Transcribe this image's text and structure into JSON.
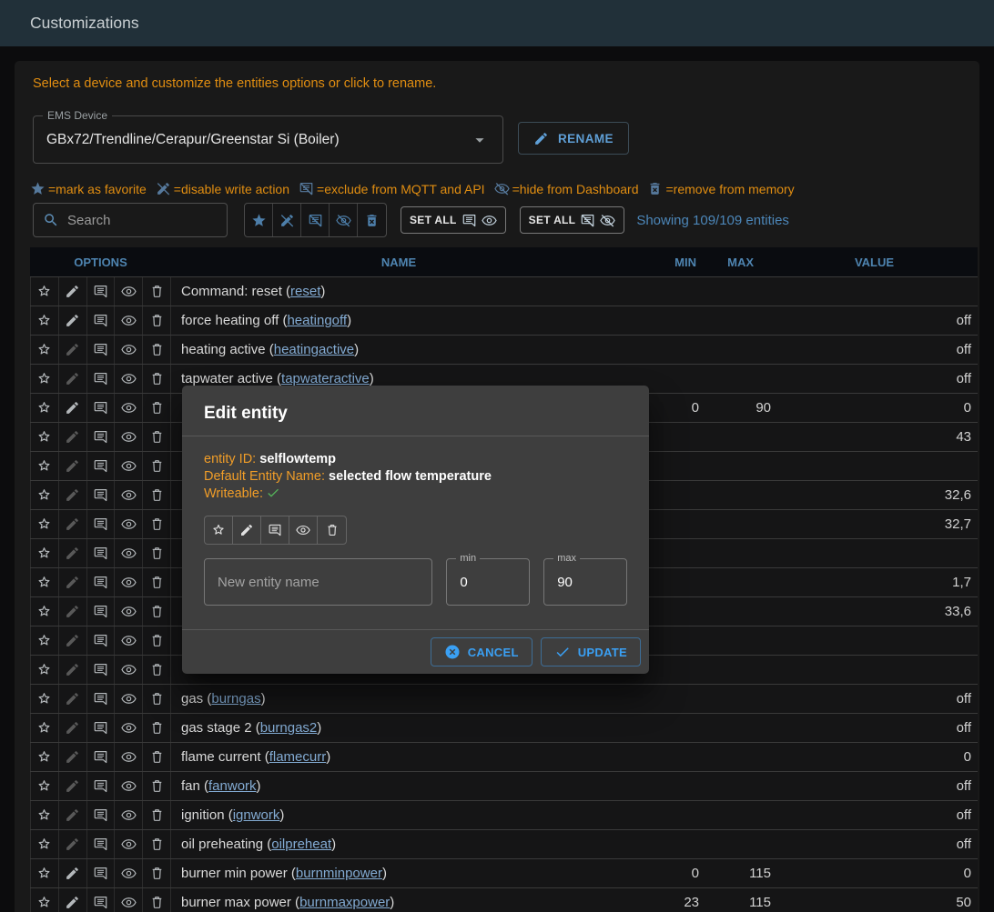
{
  "app_bar": {
    "title": "Customizations"
  },
  "intro": "Select a device and customize the entities options or click to rename.",
  "device_select": {
    "label": "EMS Device",
    "value": "GBx72/Trendline/Cerapur/Greenstar Si (Boiler)"
  },
  "rename_button": "RENAME",
  "legend": [
    {
      "icon": "star-filled",
      "text": "=mark as favorite"
    },
    {
      "icon": "pencil-off",
      "text": "=disable write action"
    },
    {
      "icon": "comment-off",
      "text": "=exclude from MQTT and API"
    },
    {
      "icon": "eye-off",
      "text": "=hide from Dashboard"
    },
    {
      "icon": "trash-x",
      "text": "=remove from memory"
    }
  ],
  "filter_bar": {
    "search_placeholder": "Search",
    "toggle_icons": [
      "star-filled",
      "pencil-off",
      "comment-off",
      "eye-off",
      "trash-x"
    ],
    "set_all_buttons": [
      {
        "label": "SET ALL",
        "icons": [
          "comment",
          "eye"
        ]
      },
      {
        "label": "SET ALL",
        "icons": [
          "comment-off",
          "eye-off"
        ]
      }
    ],
    "showing_text": "Showing 109/109 entities"
  },
  "table": {
    "headers": [
      "OPTIONS",
      "NAME",
      "MIN",
      "MAX",
      "VALUE"
    ],
    "rows": [
      {
        "name": "Command: reset",
        "id": "reset",
        "writeable": true,
        "min": "",
        "max": "",
        "value": ""
      },
      {
        "name": "force heating off",
        "id": "heatingoff",
        "writeable": true,
        "min": "",
        "max": "",
        "value": "off"
      },
      {
        "name": "heating active",
        "id": "heatingactive",
        "writeable": false,
        "min": "",
        "max": "",
        "value": "off"
      },
      {
        "name": "tapwater active",
        "id": "tapwateractive",
        "writeable": false,
        "min": "",
        "max": "",
        "value": "off"
      },
      {
        "name": "",
        "id": "",
        "writeable": true,
        "min": "0",
        "max": "90",
        "value": "0",
        "covered": true
      },
      {
        "name": "",
        "id": "",
        "writeable": false,
        "min": "",
        "max": "",
        "value": "43",
        "covered": true
      },
      {
        "name": "",
        "id": "",
        "writeable": false,
        "min": "",
        "max": "",
        "value": "",
        "covered": true
      },
      {
        "name": "",
        "id": "",
        "writeable": false,
        "min": "",
        "max": "",
        "value": "32,6",
        "covered": true
      },
      {
        "name": "",
        "id": "",
        "writeable": false,
        "min": "",
        "max": "",
        "value": "32,7",
        "covered": true
      },
      {
        "name": "",
        "id": "",
        "writeable": false,
        "min": "",
        "max": "",
        "value": "",
        "covered": true
      },
      {
        "name": "",
        "id": "",
        "writeable": false,
        "min": "",
        "max": "",
        "value": "1,7",
        "covered": true
      },
      {
        "name": "",
        "id": "",
        "writeable": false,
        "min": "",
        "max": "",
        "value": "33,6",
        "covered": true
      },
      {
        "name": "",
        "id": "",
        "writeable": false,
        "min": "",
        "max": "",
        "value": "",
        "covered": true
      },
      {
        "name": "",
        "id": "",
        "writeable": false,
        "min": "",
        "max": "",
        "value": "",
        "covered": true
      },
      {
        "name": "gas",
        "id": "burngas",
        "writeable": false,
        "min": "",
        "max": "",
        "value": "off"
      },
      {
        "name": "gas stage 2",
        "id": "burngas2",
        "writeable": false,
        "min": "",
        "max": "",
        "value": "off"
      },
      {
        "name": "flame current",
        "id": "flamecurr",
        "writeable": false,
        "min": "",
        "max": "",
        "value": "0"
      },
      {
        "name": "fan",
        "id": "fanwork",
        "writeable": false,
        "min": "",
        "max": "",
        "value": "off"
      },
      {
        "name": "ignition",
        "id": "ignwork",
        "writeable": false,
        "min": "",
        "max": "",
        "value": "off"
      },
      {
        "name": "oil preheating",
        "id": "oilpreheat",
        "writeable": false,
        "min": "",
        "max": "",
        "value": "off"
      },
      {
        "name": "burner min power",
        "id": "burnminpower",
        "writeable": true,
        "min": "0",
        "max": "115",
        "value": "0"
      },
      {
        "name": "burner max power",
        "id": "burnmaxpower",
        "writeable": true,
        "min": "23",
        "max": "115",
        "value": "50"
      }
    ]
  },
  "modal": {
    "title": "Edit entity",
    "entity_id_label": "entity ID:",
    "entity_id": "selflowtemp",
    "default_name_label": "Default Entity Name:",
    "default_name": "selected flow temperature",
    "writeable_label": "Writeable:",
    "option_icons": [
      "star",
      "pencil",
      "comment",
      "eye",
      "trash"
    ],
    "name_placeholder": "New entity name",
    "min_label": "min",
    "min_value": "0",
    "max_label": "max",
    "max_value": "90",
    "cancel_label": "CANCEL",
    "update_label": "UPDATE"
  },
  "colors": {
    "appbar_bg": "#213039",
    "accent_orange": "#e08d11",
    "modal_orange": "#f09d28",
    "accent_blue": "#4c86b8",
    "link_blue": "#83abd3",
    "button_blue": "#3aa0f4",
    "success_green": "#55b35a"
  }
}
